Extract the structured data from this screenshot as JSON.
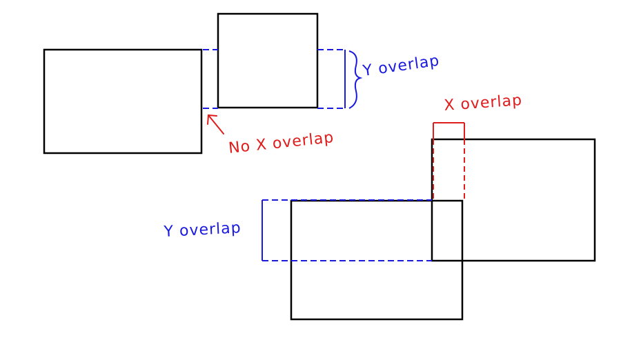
{
  "colors": {
    "box": "#000000",
    "y_overlap": "#1a1adf",
    "x_overlap": "#e01b1b",
    "background": "#ffffff"
  },
  "labels": {
    "top_y_overlap": "Y overlap",
    "top_no_x_overlap": "No X overlap",
    "bottom_x_overlap": "X overlap",
    "bottom_y_overlap": "Y overlap"
  }
}
